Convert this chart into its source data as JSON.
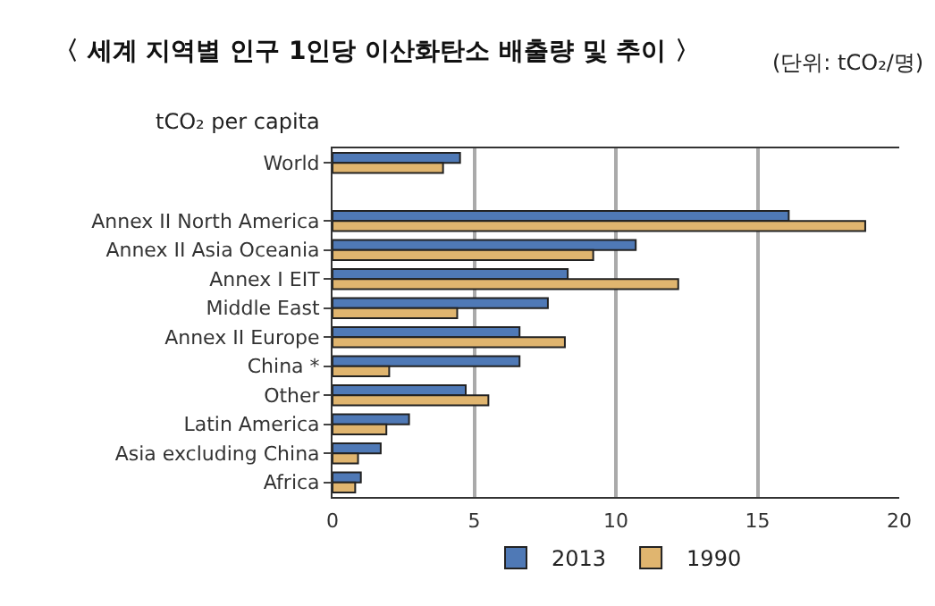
{
  "chart_data": {
    "type": "bar",
    "orientation": "horizontal",
    "title": "〈 세계 지역별 인구 1인당 이산화탄소 배출량 및 추이 〉",
    "subtitle": "(단위: tCO₂/명)",
    "ylabel": "tCO₂ per capita",
    "categories": [
      "World",
      null,
      "Annex II North America",
      "Annex II Asia Oceania",
      "Annex I EIT",
      "Middle East",
      "Annex II Europe",
      "China *",
      "Other",
      "Latin America",
      "Asia excluding China",
      "Africa"
    ],
    "series": [
      {
        "name": "2013",
        "color": "#4f79b6",
        "values": [
          4.5,
          null,
          16.1,
          10.7,
          8.3,
          7.6,
          6.6,
          6.6,
          4.7,
          2.7,
          1.7,
          1.0
        ]
      },
      {
        "name": "1990",
        "color": "#e0b56f",
        "values": [
          3.9,
          null,
          18.8,
          9.2,
          12.2,
          4.4,
          8.2,
          2.0,
          5.5,
          1.9,
          0.9,
          0.8
        ]
      }
    ],
    "xlim": [
      0,
      20
    ],
    "xticks": [
      0,
      5,
      10,
      15,
      20
    ],
    "grid": "x",
    "legend": "bottom"
  }
}
